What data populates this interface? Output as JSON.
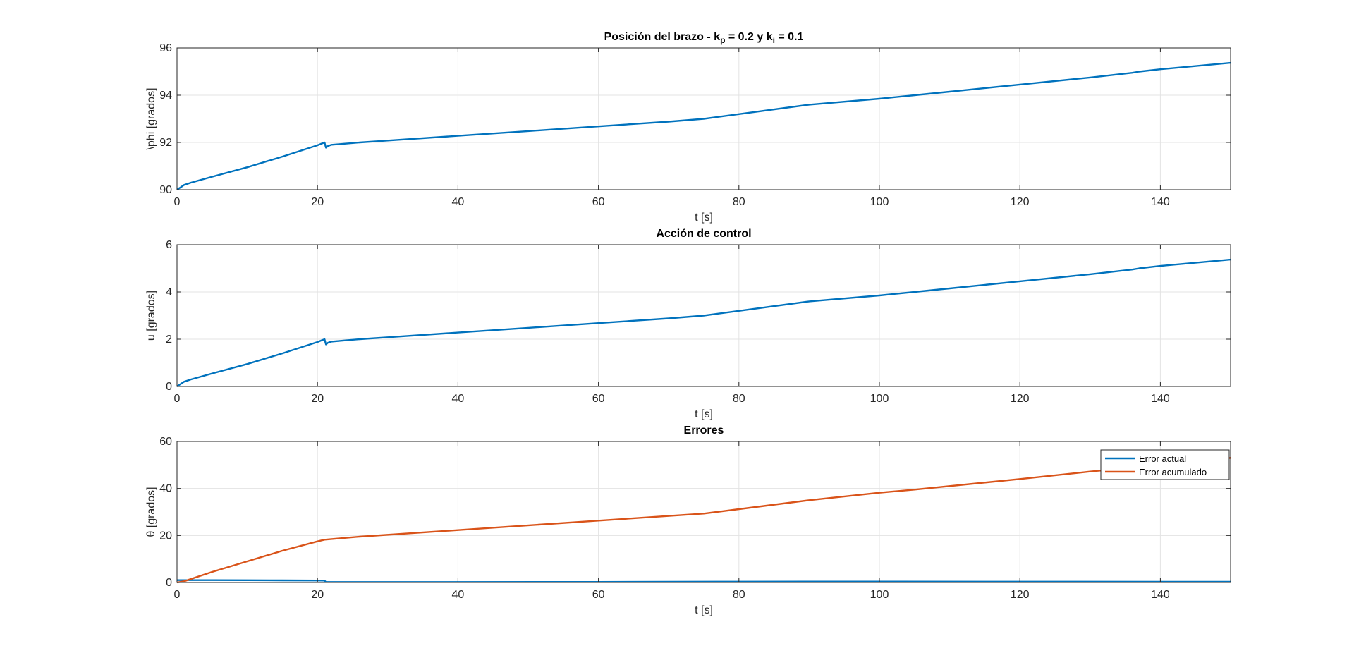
{
  "chart_data": [
    {
      "type": "line",
      "title": "Posición del brazo - k_p = 0.2 y k_i = 0.1",
      "title_parts": [
        "Posición del brazo - k",
        "p",
        " = 0.2 y k",
        "i",
        " = 0.1"
      ],
      "xlabel": "t [s]",
      "ylabel": "\\phi [grados]",
      "xlim": [
        0,
        150
      ],
      "ylim": [
        90,
        96
      ],
      "xticks": [
        0,
        20,
        40,
        60,
        80,
        100,
        120,
        140
      ],
      "yticks": [
        90,
        92,
        94,
        96
      ],
      "grid": true,
      "legend": null,
      "series": [
        {
          "color": "#0072BD",
          "x": [
            0,
            0.5,
            1,
            2,
            5,
            10,
            15,
            20,
            21,
            21.2,
            21.5,
            22,
            24,
            26,
            30,
            40,
            50,
            60,
            70,
            75,
            80,
            90,
            100,
            105,
            110,
            120,
            130,
            136,
            137,
            140,
            150
          ],
          "y": [
            90.0,
            90.1,
            90.2,
            90.3,
            90.55,
            90.95,
            91.4,
            91.88,
            92.0,
            91.78,
            91.85,
            91.9,
            91.95,
            92.0,
            92.08,
            92.28,
            92.48,
            92.68,
            92.88,
            93.0,
            93.2,
            93.6,
            93.85,
            94.0,
            94.15,
            94.45,
            94.75,
            94.95,
            95.0,
            95.1,
            95.37
          ]
        }
      ]
    },
    {
      "type": "line",
      "title": "Acción de control",
      "xlabel": "t [s]",
      "ylabel": "u [grados]",
      "xlim": [
        0,
        150
      ],
      "ylim": [
        0,
        6
      ],
      "xticks": [
        0,
        20,
        40,
        60,
        80,
        100,
        120,
        140
      ],
      "yticks": [
        0,
        2,
        4,
        6
      ],
      "grid": true,
      "legend": null,
      "series": [
        {
          "color": "#0072BD",
          "x": [
            0,
            0.5,
            1,
            2,
            5,
            10,
            15,
            20,
            21,
            21.2,
            21.5,
            22,
            24,
            26,
            30,
            40,
            50,
            60,
            70,
            75,
            80,
            90,
            100,
            105,
            110,
            120,
            130,
            136,
            137,
            140,
            150
          ],
          "y": [
            0.0,
            0.1,
            0.2,
            0.3,
            0.55,
            0.95,
            1.4,
            1.88,
            2.0,
            1.78,
            1.85,
            1.9,
            1.95,
            2.0,
            2.08,
            2.28,
            2.48,
            2.68,
            2.88,
            3.0,
            3.2,
            3.6,
            3.85,
            4.0,
            4.15,
            4.45,
            4.75,
            4.95,
            5.0,
            5.1,
            5.37
          ]
        }
      ]
    },
    {
      "type": "line",
      "title": "Errores",
      "xlabel": "t [s]",
      "ylabel": "θ [grados]",
      "xlim": [
        0,
        150
      ],
      "ylim": [
        0,
        60
      ],
      "xticks": [
        0,
        20,
        40,
        60,
        80,
        100,
        120,
        140
      ],
      "yticks": [
        0,
        20,
        40,
        60
      ],
      "grid": true,
      "legend": "top-right",
      "series": [
        {
          "name": "Error actual",
          "color": "#0072BD",
          "x": [
            0,
            1,
            5,
            10,
            15,
            20,
            21,
            21.2,
            30,
            60,
            80,
            100,
            120,
            150
          ],
          "y": [
            1.0,
            1.0,
            1.0,
            0.95,
            0.9,
            0.85,
            0.8,
            0.2,
            0.2,
            0.25,
            0.35,
            0.4,
            0.35,
            0.3
          ]
        },
        {
          "name": "Error acumulado",
          "color": "#D95319",
          "x": [
            0,
            1,
            5,
            10,
            15,
            20,
            21,
            26,
            40,
            60,
            75,
            80,
            90,
            100,
            105,
            120,
            130,
            140,
            150
          ],
          "y": [
            0,
            0.5,
            4.5,
            9,
            13.5,
            17.5,
            18.2,
            19.5,
            22.3,
            26.3,
            29.3,
            31.2,
            35.0,
            38.2,
            39.5,
            44.0,
            47.2,
            50.0,
            53.0
          ]
        }
      ]
    }
  ]
}
